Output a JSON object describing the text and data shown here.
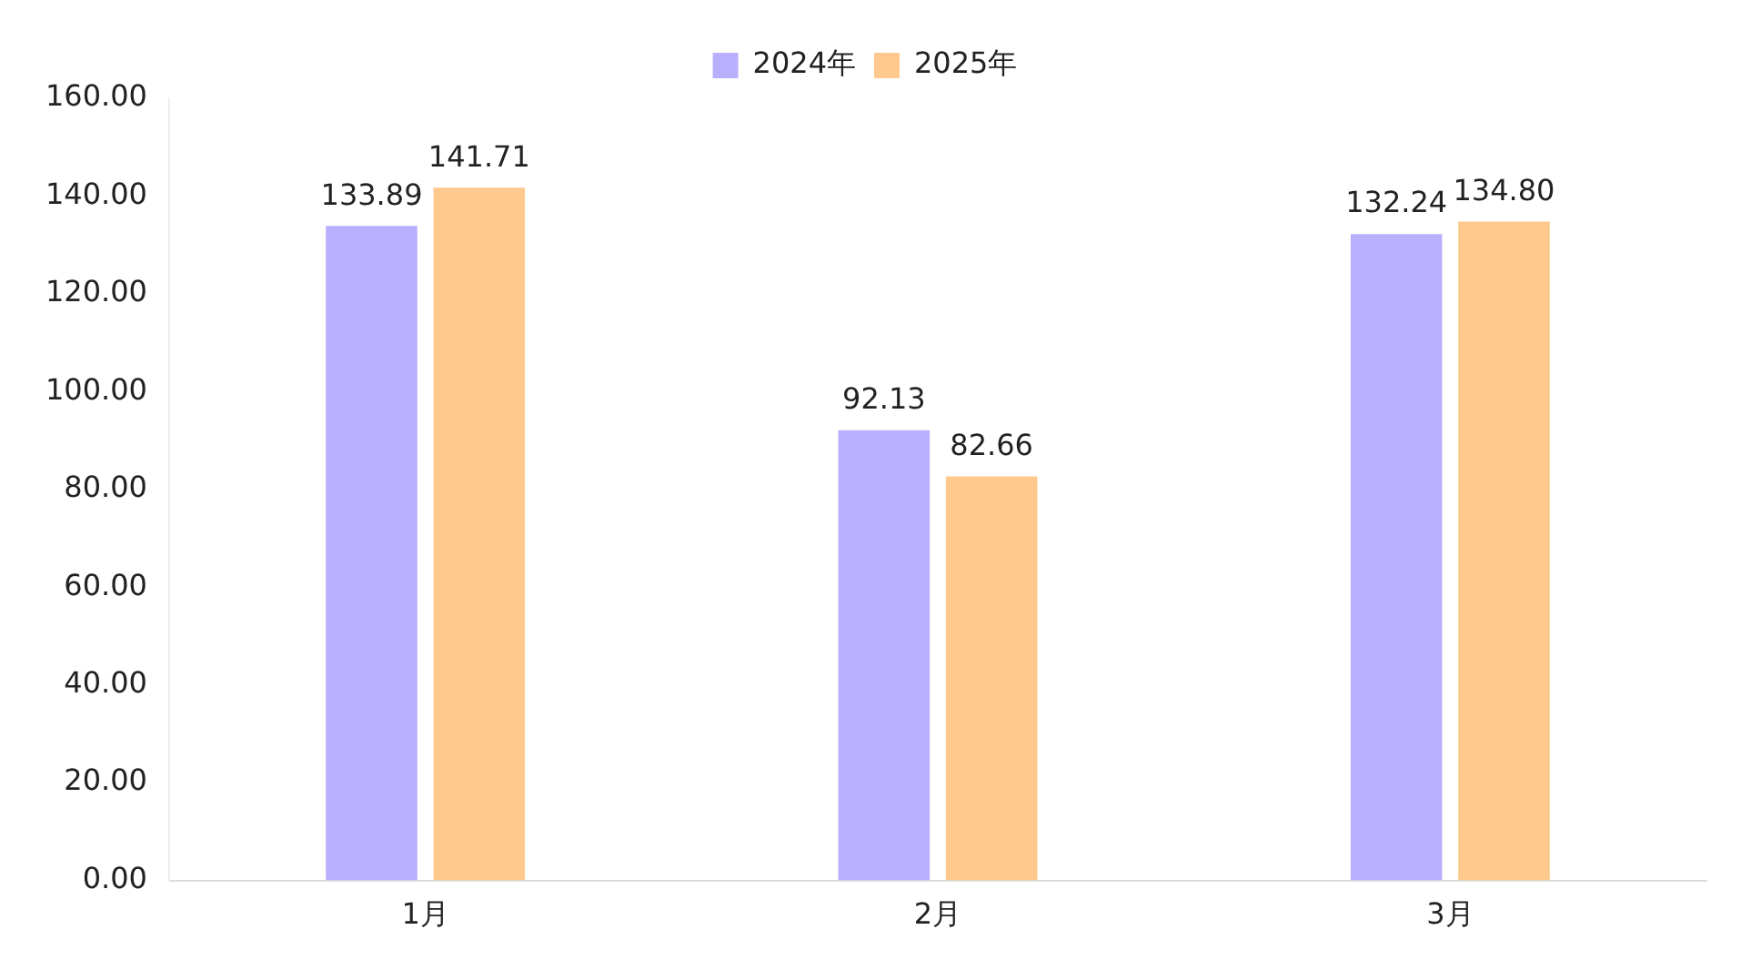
{
  "chart_data": {
    "type": "bar",
    "categories": [
      "1月",
      "2月",
      "3月"
    ],
    "series": [
      {
        "name": "2024年",
        "color": "#b8b0fc",
        "values": [
          133.89,
          92.13,
          132.24
        ],
        "value_labels": [
          "133.89",
          "92.13",
          "132.24"
        ]
      },
      {
        "name": "2025年",
        "color": "#ffc98d",
        "values": [
          141.71,
          82.66,
          134.8
        ],
        "value_labels": [
          "141.71",
          "82.66",
          "134.80"
        ]
      }
    ],
    "ylim": [
      0,
      160
    ],
    "yticks": [
      {
        "value": 0,
        "label": "0.00"
      },
      {
        "value": 20,
        "label": "20.00"
      },
      {
        "value": 40,
        "label": "40.00"
      },
      {
        "value": 60,
        "label": "60.00"
      },
      {
        "value": 80,
        "label": "80.00"
      },
      {
        "value": 100,
        "label": "100.00"
      },
      {
        "value": 120,
        "label": "120.00"
      },
      {
        "value": 140,
        "label": "140.00"
      },
      {
        "value": 160,
        "label": "160.00"
      }
    ],
    "grid": false,
    "legend": "top"
  }
}
